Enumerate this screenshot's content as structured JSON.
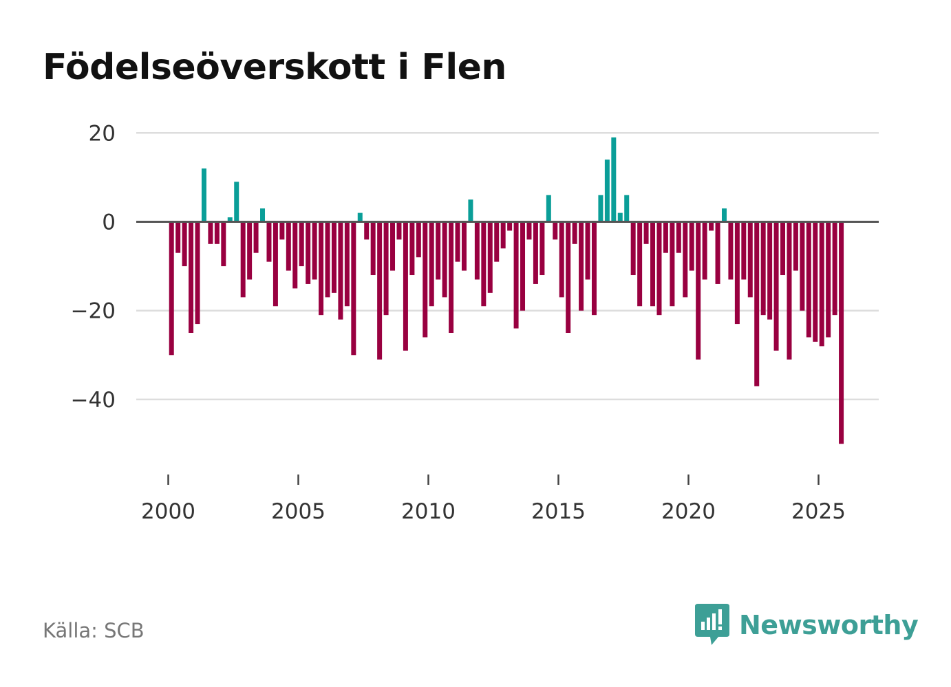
{
  "title": "Födelseöverskott i Flen",
  "source": "Källa: SCB",
  "brand": "Newsworthy",
  "colors": {
    "positive": "#0a9e98",
    "negative": "#990040",
    "grid": "#dddddd",
    "zero": "#555555",
    "brand": "#3d9f96"
  },
  "chart_data": {
    "type": "bar",
    "title": "Födelseöverskott i Flen",
    "xlabel": "",
    "ylabel": "",
    "ylim": [
      -52,
      20
    ],
    "xlim": [
      1999.2,
      2027.4
    ],
    "yticks": [
      20,
      0,
      -20,
      -40
    ],
    "ytick_labels": [
      "20",
      "0",
      "−20",
      "−40"
    ],
    "xticks": [
      2000,
      2005,
      2010,
      2015,
      2020,
      2025
    ],
    "xtick_labels": [
      "2000",
      "2005",
      "2010",
      "2015",
      "2020",
      "2025"
    ],
    "start_year": 2000,
    "periods_per_year": 4,
    "values": [
      -30,
      -7,
      -10,
      -25,
      -23,
      12,
      -5,
      -5,
      -10,
      1,
      9,
      -17,
      -13,
      -7,
      3,
      -9,
      -19,
      -4,
      -11,
      -15,
      -10,
      -14,
      -13,
      -21,
      -17,
      -16,
      -22,
      -19,
      -30,
      2,
      -4,
      -12,
      -31,
      -21,
      -11,
      -4,
      -29,
      -12,
      -8,
      -26,
      -19,
      -13,
      -17,
      -25,
      -9,
      -11,
      5,
      -13,
      -19,
      -16,
      -9,
      -6,
      -2,
      -24,
      -20,
      -4,
      -14,
      -12,
      6,
      -4,
      -17,
      -25,
      -5,
      -20,
      -13,
      -21,
      6,
      14,
      19,
      2,
      6,
      -12,
      -19,
      -5,
      -19,
      -21,
      -7,
      -19,
      -7,
      -17,
      -11,
      -31,
      -13,
      -2,
      -14,
      3,
      -13,
      -23,
      -13,
      -17,
      -37,
      -21,
      -22,
      -29,
      -12,
      -31,
      -11,
      -20,
      -26,
      -27,
      -28,
      -26,
      -21,
      -50
    ]
  }
}
